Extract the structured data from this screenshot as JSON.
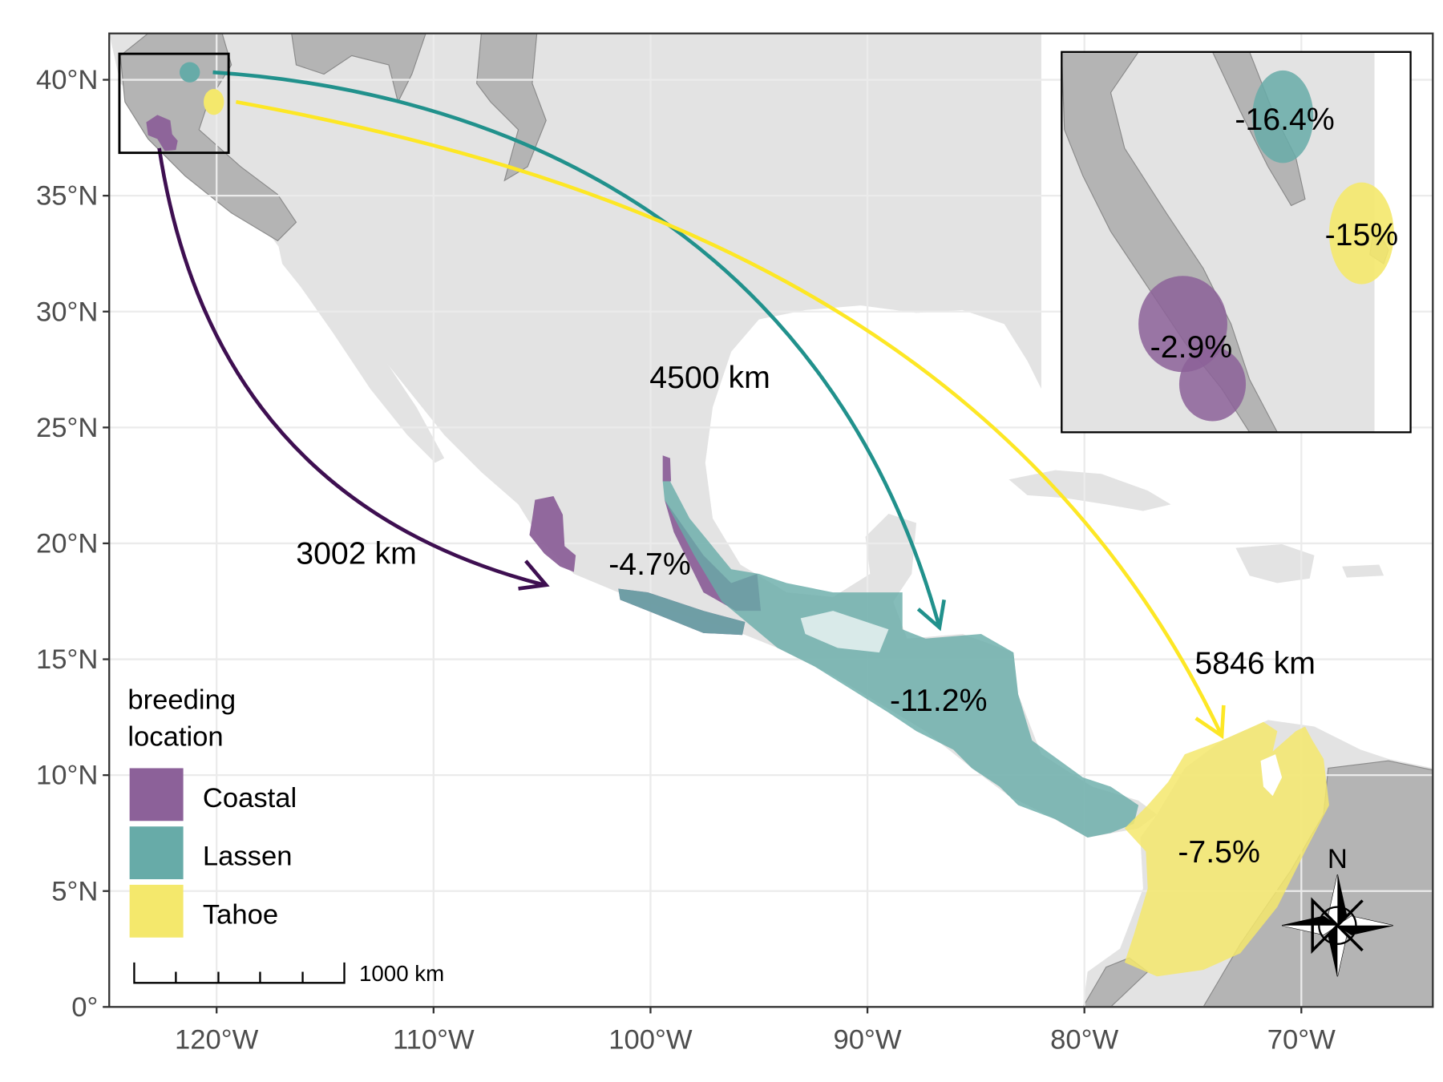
{
  "map": {
    "xlim": [
      -124.95,
      -63.94
    ],
    "ylim": [
      0,
      42
    ],
    "xticks": [
      {
        "value": -120,
        "label": "120°W"
      },
      {
        "value": -110,
        "label": "110°W"
      },
      {
        "value": -100,
        "label": "100°W"
      },
      {
        "value": -90,
        "label": "90°W"
      },
      {
        "value": -80,
        "label": "80°W"
      },
      {
        "value": -70,
        "label": "70°W"
      }
    ],
    "yticks": [
      {
        "value": 0,
        "label": "0°"
      },
      {
        "value": 5,
        "label": "5°N"
      },
      {
        "value": 10,
        "label": "10°N"
      },
      {
        "value": 15,
        "label": "15°N"
      },
      {
        "value": 20,
        "label": "20°N"
      },
      {
        "value": 25,
        "label": "25°N"
      },
      {
        "value": 30,
        "label": "30°N"
      },
      {
        "value": 35,
        "label": "35°N"
      },
      {
        "value": 40,
        "label": "40°N"
      }
    ],
    "legend": {
      "title": [
        "breeding",
        "location"
      ],
      "items": [
        {
          "label": "Coastal",
          "color": "#8c6199"
        },
        {
          "label": "Lassen",
          "color": "#67aba8"
        },
        {
          "label": "Tahoe",
          "color": "#f4e86c"
        }
      ]
    },
    "routes": [
      {
        "distance": "3002 km",
        "color": "#3e0f51"
      },
      {
        "distance": "4500 km",
        "color": "#21918c"
      },
      {
        "distance": "5846 km",
        "color": "#fde725"
      }
    ],
    "change_labels": {
      "wintering": [
        "-4.7%",
        "-11.2%",
        "-7.5%"
      ],
      "inset": [
        "-2.9%",
        "-16.4%",
        "-15%"
      ]
    },
    "scale_bar": "1000 km",
    "north": "N"
  }
}
